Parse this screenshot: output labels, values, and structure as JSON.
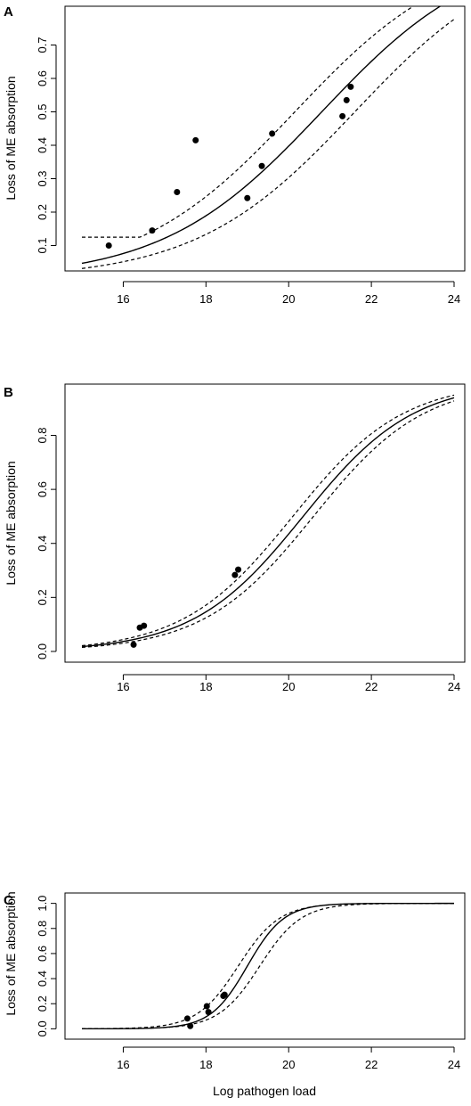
{
  "xlabel": "Log pathogen load",
  "chart_data": [
    {
      "type": "line",
      "panel": "A",
      "ylabel": "Loss of ME absorption",
      "xlim": [
        15,
        24
      ],
      "ylim": [
        0.04,
        0.8
      ],
      "xticks": [
        16,
        18,
        20,
        22,
        24
      ],
      "yticks": [
        0.1,
        0.2,
        0.3,
        0.4,
        0.5,
        0.6,
        0.7
      ],
      "ytick_labels": [
        "0.1",
        "0.2",
        "0.3",
        "0.4",
        "0.5",
        "0.6",
        "0.7"
      ],
      "fit": {
        "x0": 20.8,
        "k": 0.52
      },
      "lower_ci": {
        "x0": 21.6,
        "k": 0.52
      },
      "upper_ci": {
        "x0": 20.15,
        "k": 0.52,
        "floor": 0.125
      },
      "points": [
        {
          "x": 15.65,
          "y": 0.1
        },
        {
          "x": 16.7,
          "y": 0.145
        },
        {
          "x": 17.3,
          "y": 0.26
        },
        {
          "x": 17.75,
          "y": 0.415
        },
        {
          "x": 19.0,
          "y": 0.242
        },
        {
          "x": 19.35,
          "y": 0.338
        },
        {
          "x": 19.6,
          "y": 0.435
        },
        {
          "x": 21.3,
          "y": 0.487
        },
        {
          "x": 21.4,
          "y": 0.535
        },
        {
          "x": 21.5,
          "y": 0.575
        }
      ]
    },
    {
      "type": "line",
      "panel": "B",
      "ylabel": "Loss of ME absorption",
      "xlim": [
        15,
        24
      ],
      "ylim": [
        -0.02,
        0.97
      ],
      "xticks": [
        16,
        18,
        20,
        22,
        24
      ],
      "yticks": [
        0.0,
        0.2,
        0.4,
        0.6,
        0.8
      ],
      "ytick_labels": [
        "0.0",
        "0.2",
        "0.4",
        "0.6",
        "0.8"
      ],
      "fit": {
        "x0": 20.35,
        "k": 0.75
      },
      "lower_ci": {
        "x0": 20.6,
        "k": 0.75
      },
      "upper_ci": {
        "x0": 20.1,
        "k": 0.75
      },
      "points": [
        {
          "x": 16.25,
          "y": 0.025
        },
        {
          "x": 16.4,
          "y": 0.088
        },
        {
          "x": 16.5,
          "y": 0.095
        },
        {
          "x": 18.7,
          "y": 0.283
        },
        {
          "x": 18.78,
          "y": 0.303
        }
      ]
    },
    {
      "type": "line",
      "panel": "C",
      "ylabel": "Loss of ME absorption",
      "xlim": [
        15,
        24
      ],
      "ylim": [
        -0.04,
        1.04
      ],
      "xticks": [
        16,
        18,
        20,
        22,
        24
      ],
      "yticks": [
        0.0,
        0.2,
        0.4,
        0.6,
        0.8,
        1.0
      ],
      "ytick_labels": [
        "0.0",
        "0.2",
        "0.4",
        "0.6",
        "0.8",
        "1.0"
      ],
      "fit": {
        "x0": 19.0,
        "k": 2.25
      },
      "lower_ci": {
        "x0": 19.3,
        "k": 2.0
      },
      "upper_ci": {
        "x0": 18.78,
        "k": 2.0
      },
      "points": [
        {
          "x": 17.55,
          "y": 0.082
        },
        {
          "x": 17.62,
          "y": 0.022
        },
        {
          "x": 18.02,
          "y": 0.18
        },
        {
          "x": 18.06,
          "y": 0.133
        },
        {
          "x": 18.42,
          "y": 0.262
        },
        {
          "x": 18.45,
          "y": 0.272
        }
      ]
    }
  ]
}
